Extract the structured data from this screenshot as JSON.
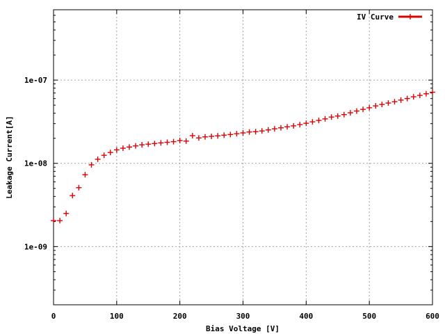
{
  "chart_data": {
    "type": "scatter",
    "title": "",
    "xlabel": "Bias Voltage [V]",
    "ylabel": "Leakage Current[A]",
    "xlim": [
      0,
      600
    ],
    "ylim": [
      2e-10,
      7e-07
    ],
    "y_scale": "log",
    "grid": true,
    "legend_position": "top-right",
    "x_ticks": [
      {
        "value": 0,
        "label": "0"
      },
      {
        "value": 100,
        "label": "100"
      },
      {
        "value": 200,
        "label": "200"
      },
      {
        "value": 300,
        "label": "300"
      },
      {
        "value": 400,
        "label": "400"
      },
      {
        "value": 500,
        "label": "500"
      },
      {
        "value": 600,
        "label": "600"
      }
    ],
    "y_ticks": [
      {
        "value": 1e-09,
        "label": "1e-09"
      },
      {
        "value": 1e-08,
        "label": "1e-08"
      },
      {
        "value": 1e-07,
        "label": "1e-07"
      }
    ],
    "series": [
      {
        "name": "IV Curve",
        "color": "#dd0000",
        "marker": "plus",
        "x": [
          0,
          10,
          20,
          30,
          40,
          50,
          60,
          70,
          80,
          90,
          100,
          110,
          120,
          130,
          140,
          150,
          160,
          170,
          180,
          190,
          200,
          210,
          220,
          230,
          240,
          250,
          260,
          270,
          280,
          290,
          300,
          310,
          320,
          330,
          340,
          350,
          360,
          370,
          380,
          390,
          400,
          410,
          420,
          430,
          440,
          450,
          460,
          470,
          480,
          490,
          500,
          510,
          520,
          530,
          540,
          550,
          560,
          570,
          580,
          590,
          600
        ],
        "y": [
          2.05e-09,
          2.05e-09,
          2.5e-09,
          4.1e-09,
          5.1e-09,
          7.3e-09,
          9.6e-09,
          1.12e-08,
          1.25e-08,
          1.35e-08,
          1.45e-08,
          1.52e-08,
          1.57e-08,
          1.62e-08,
          1.67e-08,
          1.7e-08,
          1.73e-08,
          1.76e-08,
          1.79e-08,
          1.82e-08,
          1.88e-08,
          1.85e-08,
          2.15e-08,
          2.02e-08,
          2.08e-08,
          2.11e-08,
          2.14e-08,
          2.18e-08,
          2.22e-08,
          2.27e-08,
          2.32e-08,
          2.38e-08,
          2.4e-08,
          2.45e-08,
          2.52e-08,
          2.6e-08,
          2.67e-08,
          2.75e-08,
          2.82e-08,
          2.92e-08,
          3.03e-08,
          3.15e-08,
          3.28e-08,
          3.42e-08,
          3.6e-08,
          3.7e-08,
          3.85e-08,
          4.05e-08,
          4.25e-08,
          4.45e-08,
          4.65e-08,
          4.9e-08,
          5.1e-08,
          5.3e-08,
          5.5e-08,
          5.75e-08,
          6e-08,
          6.3e-08,
          6.55e-08,
          6.85e-08,
          7.15e-08
        ]
      }
    ]
  }
}
